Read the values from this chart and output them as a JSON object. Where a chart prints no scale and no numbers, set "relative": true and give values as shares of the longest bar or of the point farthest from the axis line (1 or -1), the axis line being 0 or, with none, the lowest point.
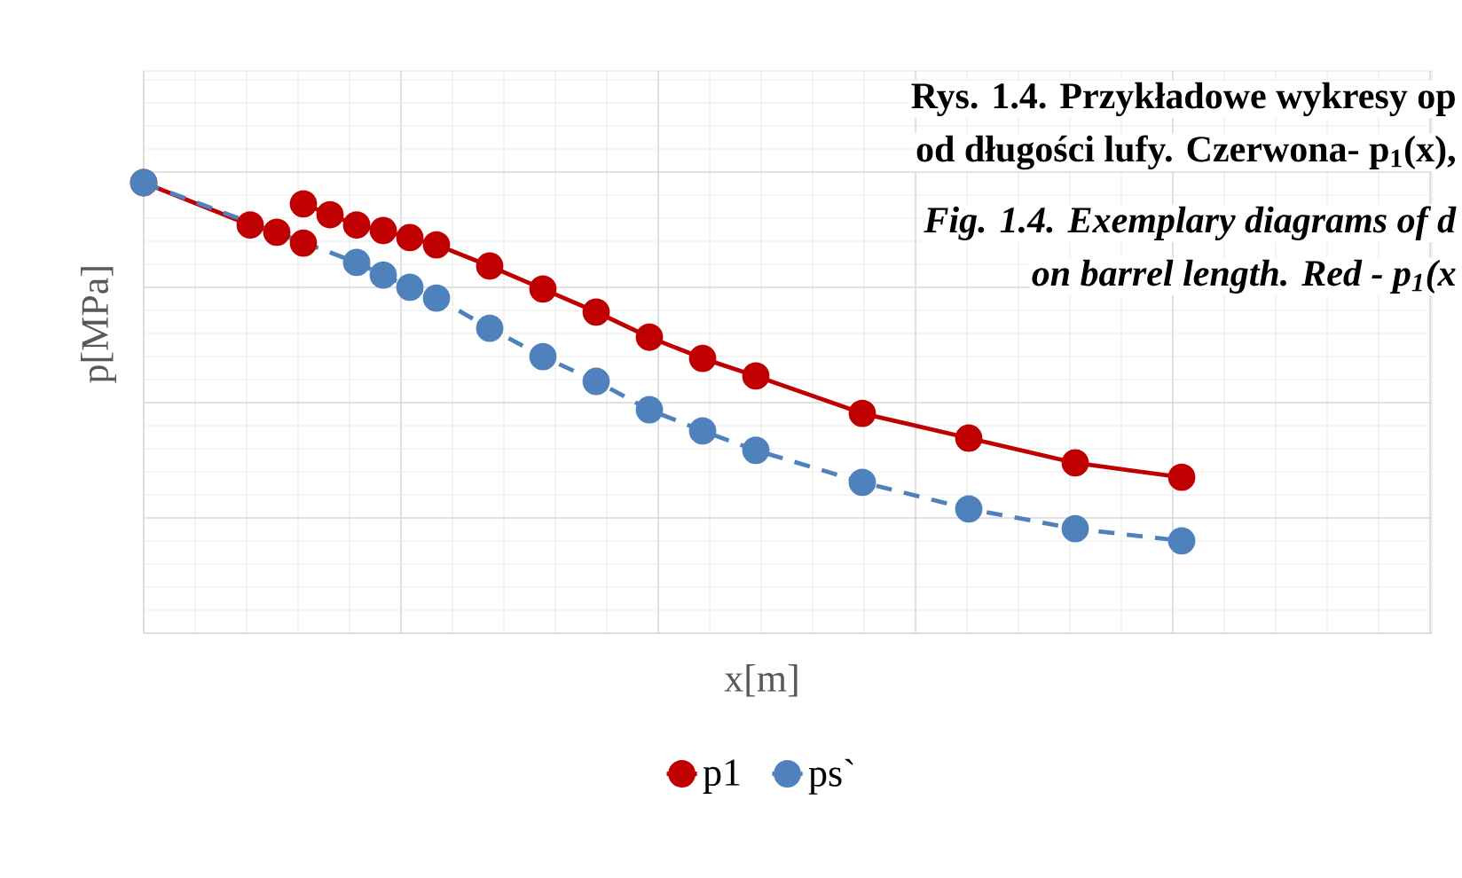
{
  "chart_data": {
    "type": "line",
    "relative": true,
    "annotations": [
      "Rys. 1.4. Przykładowe wykresy op",
      "od długości lufy. Czerwona- p$_{1}$(x),",
      "*Fig. 1.4. Exemplary diagrams of d*",
      "*on barrel length. Red - p$_{1}$(x*"
    ],
    "xlabel": "x[m]",
    "ylabel": "p[MPa]",
    "categories": [
      null,
      null,
      null,
      null,
      null,
      null,
      null,
      null,
      null,
      null,
      null,
      null,
      null,
      null,
      null,
      null,
      null,
      null,
      null,
      null,
      null,
      null,
      null,
      null,
      null,
      null,
      null,
      null,
      null,
      null,
      null,
      null,
      null,
      null,
      null,
      null,
      null,
      null,
      null,
      null,
      null,
      null,
      null,
      null,
      null,
      null,
      null,
      null,
      null
    ],
    "grid": true,
    "legend": "bottom",
    "marker": "circle",
    "series": [
      {
        "color": "#c00000",
        "line_style": "solid",
        "values": [
          1.0,
          null,
          null,
          null,
          0.906,
          0.89,
          0.866,
          null,
          null,
          null,
          null,
          null,
          null,
          null,
          null,
          null,
          null,
          null,
          null,
          null,
          null,
          null,
          null,
          null,
          null,
          null,
          null,
          null,
          null,
          null,
          null,
          null,
          null,
          null,
          null,
          null,
          null,
          null,
          null,
          null,
          null,
          null,
          null,
          null,
          null,
          null,
          null,
          null,
          null
        ]
      },
      {
        "name": "p1",
        "color": "#c00000",
        "line_style": "solid",
        "values": [
          null,
          null,
          null,
          null,
          null,
          null,
          0.953,
          0.929,
          0.906,
          0.894,
          0.878,
          0.862,
          null,
          0.815,
          null,
          0.764,
          null,
          0.713,
          null,
          0.657,
          null,
          0.61,
          null,
          0.571,
          null,
          null,
          null,
          0.488,
          null,
          null,
          null,
          0.433,
          null,
          null,
          null,
          0.378,
          null,
          null,
          null,
          0.346,
          null,
          null,
          null,
          null,
          null,
          null,
          null,
          null,
          null
        ]
      },
      {
        "name": "ps`",
        "color": "#4f81bd",
        "line_style": "dashed",
        "values": [
          1.0,
          null,
          null,
          null,
          null,
          null,
          null,
          null,
          0.823,
          0.795,
          0.768,
          0.744,
          null,
          0.677,
          null,
          0.614,
          null,
          0.559,
          null,
          0.496,
          null,
          0.449,
          null,
          0.406,
          null,
          null,
          null,
          0.335,
          null,
          null,
          null,
          0.276,
          null,
          null,
          null,
          0.232,
          null,
          null,
          null,
          0.205,
          null,
          null,
          null,
          null,
          null,
          null,
          null,
          null,
          null
        ]
      }
    ]
  }
}
